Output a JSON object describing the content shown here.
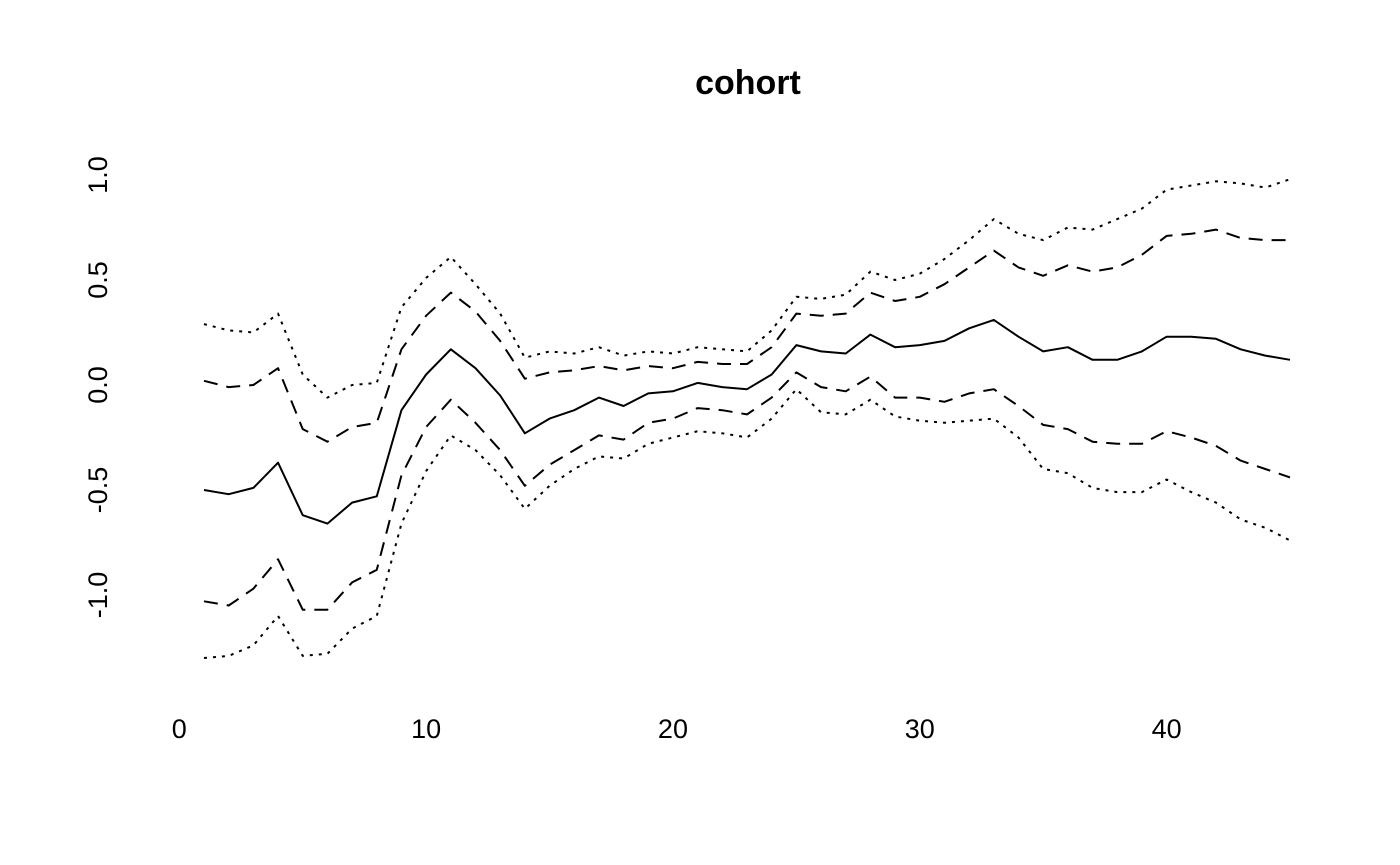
{
  "chart_data": {
    "type": "line",
    "title": "cohort",
    "xlabel": "",
    "ylabel": "",
    "xlim": [
      1,
      45
    ],
    "ylim": [
      -1.3,
      1.0
    ],
    "xticks": [
      0,
      10,
      20,
      30,
      40
    ],
    "yticks": [
      -1.0,
      -0.5,
      0.0,
      0.5,
      1.0
    ],
    "ytick_labels": [
      "-1.0",
      "-0.5",
      "0.0",
      "0.5",
      "1.0"
    ],
    "grid": false,
    "legend": "none",
    "x": [
      1,
      2,
      3,
      4,
      5,
      6,
      7,
      8,
      9,
      10,
      11,
      12,
      13,
      14,
      15,
      16,
      17,
      18,
      19,
      20,
      21,
      22,
      23,
      24,
      25,
      26,
      27,
      28,
      29,
      30,
      31,
      32,
      33,
      34,
      35,
      36,
      37,
      38,
      39,
      40,
      41,
      42,
      43,
      44,
      45
    ],
    "series": [
      {
        "style": "dotted",
        "color": "#000000",
        "values": [
          0.29,
          0.26,
          0.25,
          0.34,
          0.05,
          -0.06,
          0.0,
          0.01,
          0.37,
          0.51,
          0.61,
          0.48,
          0.34,
          0.13,
          0.16,
          0.15,
          0.18,
          0.14,
          0.16,
          0.15,
          0.18,
          0.17,
          0.16,
          0.26,
          0.42,
          0.41,
          0.43,
          0.54,
          0.5,
          0.53,
          0.6,
          0.69,
          0.79,
          0.72,
          0.69,
          0.75,
          0.74,
          0.79,
          0.84,
          0.93,
          0.95,
          0.97,
          0.96,
          0.94,
          0.98
        ]
      },
      {
        "style": "dashed",
        "color": "#000000",
        "values": [
          0.02,
          -0.01,
          0.0,
          0.08,
          -0.21,
          -0.27,
          -0.2,
          -0.18,
          0.17,
          0.33,
          0.44,
          0.35,
          0.21,
          0.03,
          0.06,
          0.07,
          0.09,
          0.07,
          0.09,
          0.08,
          0.11,
          0.1,
          0.1,
          0.18,
          0.34,
          0.33,
          0.34,
          0.44,
          0.4,
          0.42,
          0.48,
          0.56,
          0.64,
          0.56,
          0.52,
          0.57,
          0.54,
          0.56,
          0.62,
          0.71,
          0.72,
          0.74,
          0.7,
          0.69,
          0.69
        ]
      },
      {
        "style": "solid",
        "color": "#000000",
        "values": [
          -0.5,
          -0.52,
          -0.49,
          -0.37,
          -0.62,
          -0.66,
          -0.56,
          -0.53,
          -0.12,
          0.05,
          0.17,
          0.08,
          -0.05,
          -0.23,
          -0.16,
          -0.12,
          -0.06,
          -0.1,
          -0.04,
          -0.03,
          0.01,
          -0.01,
          -0.02,
          0.05,
          0.19,
          0.16,
          0.15,
          0.24,
          0.18,
          0.19,
          0.21,
          0.27,
          0.31,
          0.23,
          0.16,
          0.18,
          0.12,
          0.12,
          0.16,
          0.23,
          0.23,
          0.22,
          0.17,
          0.14,
          0.12
        ]
      },
      {
        "style": "dashed",
        "color": "#000000",
        "values": [
          -1.03,
          -1.05,
          -0.97,
          -0.83,
          -1.07,
          -1.07,
          -0.94,
          -0.88,
          -0.43,
          -0.2,
          -0.07,
          -0.18,
          -0.31,
          -0.48,
          -0.38,
          -0.31,
          -0.24,
          -0.26,
          -0.18,
          -0.16,
          -0.11,
          -0.12,
          -0.14,
          -0.06,
          0.06,
          -0.01,
          -0.03,
          0.04,
          -0.06,
          -0.06,
          -0.08,
          -0.04,
          -0.02,
          -0.1,
          -0.19,
          -0.21,
          -0.27,
          -0.28,
          -0.28,
          -0.22,
          -0.25,
          -0.29,
          -0.36,
          -0.4,
          -0.44
        ]
      },
      {
        "style": "dotted",
        "color": "#000000",
        "values": [
          -1.3,
          -1.29,
          -1.24,
          -1.1,
          -1.29,
          -1.28,
          -1.16,
          -1.1,
          -0.66,
          -0.41,
          -0.24,
          -0.31,
          -0.43,
          -0.59,
          -0.48,
          -0.4,
          -0.34,
          -0.35,
          -0.28,
          -0.25,
          -0.22,
          -0.23,
          -0.25,
          -0.16,
          -0.02,
          -0.13,
          -0.14,
          -0.07,
          -0.15,
          -0.17,
          -0.18,
          -0.17,
          -0.16,
          -0.25,
          -0.4,
          -0.42,
          -0.49,
          -0.51,
          -0.51,
          -0.45,
          -0.51,
          -0.56,
          -0.64,
          -0.68,
          -0.74
        ]
      }
    ]
  }
}
